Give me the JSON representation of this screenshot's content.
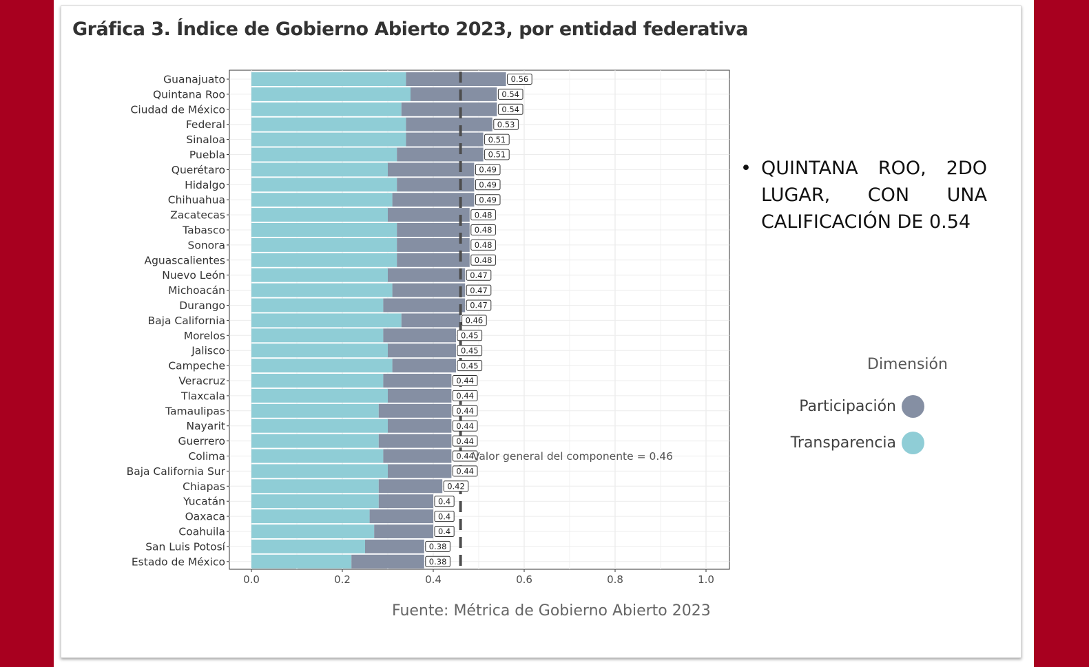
{
  "title": "Gráfica 3. Índice de Gobierno Abierto 2023, por entidad federativa",
  "bullet": {
    "symbol": "•",
    "text": "QUINTANA ROO, 2DO LUGAR, CON UNA CALIFICACIÓN DE 0.54"
  },
  "source": "Fuente: Métrica de Gobierno Abierto 2023",
  "legend": {
    "title": "Dimensión",
    "items": [
      {
        "label": "Participación",
        "color": "#858fa3"
      },
      {
        "label": "Transparencia",
        "color": "#8fcdd6"
      }
    ]
  },
  "colors": {
    "participacion": "#858fa3",
    "transparencia": "#8fcdd6",
    "reference": "#4d4d4d",
    "background": "#a8001f"
  },
  "chart_data": {
    "type": "bar",
    "stacked": true,
    "orientation": "horizontal",
    "title": "Gráfica 3. Índice de Gobierno Abierto 2023, por entidad federativa",
    "xlabel": "",
    "ylabel": "",
    "xlim": [
      0,
      1.0
    ],
    "x_ticks": [
      "0.0",
      "0.2",
      "0.4",
      "0.6",
      "0.8",
      "1.0"
    ],
    "grid": true,
    "legend_position": "right",
    "categories": [
      "Guanajuato",
      "Quintana Roo",
      "Ciudad de México",
      "Federal",
      "Sinaloa",
      "Puebla",
      "Querétaro",
      "Hidalgo",
      "Chihuahua",
      "Zacatecas",
      "Tabasco",
      "Sonora",
      "Aguascalientes",
      "Nuevo León",
      "Michoacán",
      "Durango",
      "Baja California",
      "Morelos",
      "Jalisco",
      "Campeche",
      "Veracruz",
      "Tlaxcala",
      "Tamaulipas",
      "Nayarit",
      "Guerrero",
      "Colima",
      "Baja California Sur",
      "Chiapas",
      "Yucatán",
      "Oaxaca",
      "Coahuila",
      "San Luis Potosí",
      "Estado de México"
    ],
    "series": [
      {
        "name": "Transparencia",
        "values": [
          0.34,
          0.35,
          0.33,
          0.34,
          0.34,
          0.32,
          0.3,
          0.32,
          0.31,
          0.3,
          0.32,
          0.32,
          0.32,
          0.3,
          0.31,
          0.29,
          0.33,
          0.29,
          0.3,
          0.31,
          0.29,
          0.3,
          0.28,
          0.3,
          0.28,
          0.29,
          0.3,
          0.28,
          0.28,
          0.26,
          0.27,
          0.25,
          0.22
        ]
      },
      {
        "name": "Participación",
        "values": [
          0.22,
          0.19,
          0.21,
          0.19,
          0.17,
          0.19,
          0.19,
          0.17,
          0.18,
          0.18,
          0.16,
          0.16,
          0.16,
          0.17,
          0.16,
          0.18,
          0.13,
          0.16,
          0.15,
          0.14,
          0.15,
          0.14,
          0.16,
          0.14,
          0.16,
          0.15,
          0.14,
          0.14,
          0.12,
          0.14,
          0.13,
          0.13,
          0.16
        ]
      }
    ],
    "totals": [
      0.56,
      0.54,
      0.54,
      0.53,
      0.51,
      0.51,
      0.49,
      0.49,
      0.49,
      0.48,
      0.48,
      0.48,
      0.48,
      0.47,
      0.47,
      0.47,
      0.46,
      0.45,
      0.45,
      0.45,
      0.44,
      0.44,
      0.44,
      0.44,
      0.44,
      0.44,
      0.44,
      0.42,
      0.4,
      0.4,
      0.4,
      0.38,
      0.38
    ],
    "reference_line": {
      "value": 0.46,
      "label": "Valor general del componente = 0.46"
    }
  }
}
